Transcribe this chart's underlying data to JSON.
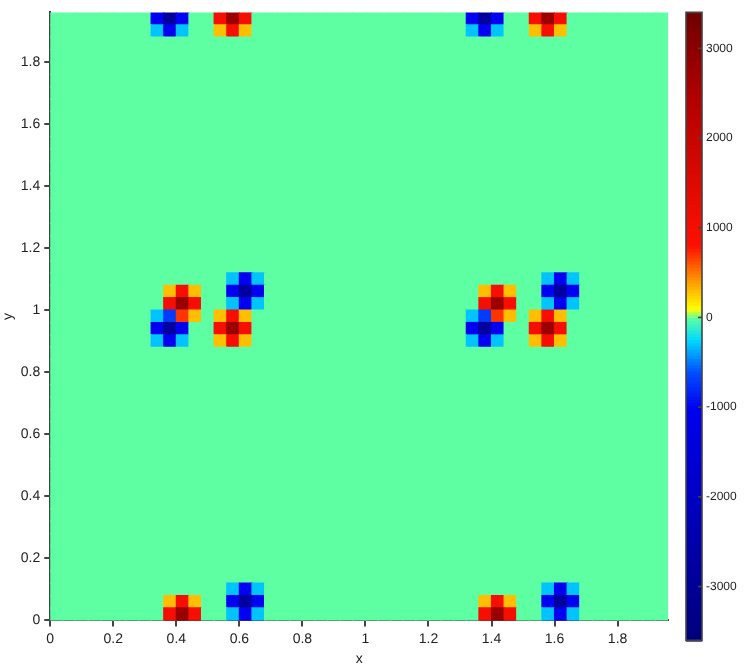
{
  "chart_data": {
    "type": "heatmap",
    "xlabel": "x",
    "ylabel": "y",
    "xlim": [
      0,
      1.96
    ],
    "xticks": [
      0,
      0.2,
      0.4,
      0.6,
      0.8,
      1,
      1.2,
      1.4,
      1.6,
      1.8
    ],
    "ylim": [
      0,
      1.96
    ],
    "yticks": [
      0,
      0.2,
      0.4,
      0.6,
      0.8,
      1,
      1.2,
      1.4,
      1.6,
      1.8
    ],
    "clim": [
      -3600,
      3400
    ],
    "cticks": [
      -3000,
      -2000,
      -1000,
      0,
      1000,
      2000,
      3000
    ],
    "cells": [
      [
        0,
        0,
        0,
        0,
        0,
        0,
        0,
        0,
        -1000,
        -2800,
        -1000,
        0,
        0,
        1000,
        2800,
        1000,
        0,
        0,
        0,
        0,
        0,
        0,
        0,
        0,
        0,
        0,
        0,
        0,
        0,
        0,
        0,
        0,
        0,
        -1000,
        -2800,
        -1000,
        0,
        0,
        1000,
        2800,
        1000,
        0,
        0,
        0,
        0,
        0,
        0,
        0,
        0
      ],
      [
        0,
        0,
        0,
        0,
        0,
        0,
        0,
        0,
        -300,
        -1000,
        -300,
        0,
        0,
        300,
        1000,
        300,
        0,
        0,
        0,
        0,
        0,
        0,
        0,
        0,
        0,
        0,
        0,
        0,
        0,
        0,
        0,
        0,
        0,
        -300,
        -1000,
        -300,
        0,
        0,
        300,
        1000,
        300,
        0,
        0,
        0,
        0,
        0,
        0,
        0,
        0
      ],
      [
        0,
        0,
        0,
        0,
        0,
        0,
        0,
        0,
        0,
        0,
        0,
        0,
        0,
        0,
        0,
        0,
        0,
        0,
        0,
        0,
        0,
        0,
        0,
        0,
        0,
        0,
        0,
        0,
        0,
        0,
        0,
        0,
        0,
        0,
        0,
        0,
        0,
        0,
        0,
        0,
        0,
        0,
        0,
        0,
        0,
        0,
        0,
        0,
        0
      ],
      [
        0,
        0,
        0,
        0,
        0,
        0,
        0,
        0,
        0,
        0,
        0,
        0,
        0,
        0,
        0,
        0,
        0,
        0,
        0,
        0,
        0,
        0,
        0,
        0,
        0,
        0,
        0,
        0,
        0,
        0,
        0,
        0,
        0,
        0,
        0,
        0,
        0,
        0,
        0,
        0,
        0,
        0,
        0,
        0,
        0,
        0,
        0,
        0,
        0
      ],
      [
        0,
        0,
        0,
        0,
        0,
        0,
        0,
        0,
        0,
        0,
        0,
        0,
        0,
        0,
        0,
        0,
        0,
        0,
        0,
        0,
        0,
        0,
        0,
        0,
        0,
        0,
        0,
        0,
        0,
        0,
        0,
        0,
        0,
        0,
        0,
        0,
        0,
        0,
        0,
        0,
        0,
        0,
        0,
        0,
        0,
        0,
        0,
        0,
        0
      ],
      [
        0,
        0,
        0,
        0,
        0,
        0,
        0,
        0,
        0,
        0,
        0,
        0,
        0,
        0,
        0,
        0,
        0,
        0,
        0,
        0,
        0,
        0,
        0,
        0,
        0,
        0,
        0,
        0,
        0,
        0,
        0,
        0,
        0,
        0,
        0,
        0,
        0,
        0,
        0,
        0,
        0,
        0,
        0,
        0,
        0,
        0,
        0,
        0,
        0
      ],
      [
        0,
        0,
        0,
        0,
        0,
        0,
        0,
        0,
        0,
        0,
        0,
        0,
        0,
        0,
        0,
        0,
        0,
        0,
        0,
        0,
        0,
        0,
        0,
        0,
        0,
        0,
        0,
        0,
        0,
        0,
        0,
        0,
        0,
        0,
        0,
        0,
        0,
        0,
        0,
        0,
        0,
        0,
        0,
        0,
        0,
        0,
        0,
        0,
        0
      ],
      [
        0,
        0,
        0,
        0,
        0,
        0,
        0,
        0,
        0,
        0,
        0,
        0,
        0,
        0,
        0,
        0,
        0,
        0,
        0,
        0,
        0,
        0,
        0,
        0,
        0,
        0,
        0,
        0,
        0,
        0,
        0,
        0,
        0,
        0,
        0,
        0,
        0,
        0,
        0,
        0,
        0,
        0,
        0,
        0,
        0,
        0,
        0,
        0,
        0
      ],
      [
        0,
        0,
        0,
        0,
        0,
        0,
        0,
        0,
        0,
        0,
        0,
        0,
        0,
        0,
        0,
        0,
        0,
        0,
        0,
        0,
        0,
        0,
        0,
        0,
        0,
        0,
        0,
        0,
        0,
        0,
        0,
        0,
        0,
        0,
        0,
        0,
        0,
        0,
        0,
        0,
        0,
        0,
        0,
        0,
        0,
        0,
        0,
        0,
        0
      ],
      [
        0,
        0,
        0,
        0,
        0,
        0,
        0,
        0,
        0,
        0,
        0,
        0,
        0,
        0,
        0,
        0,
        0,
        0,
        0,
        0,
        0,
        0,
        0,
        0,
        0,
        0,
        0,
        0,
        0,
        0,
        0,
        0,
        0,
        0,
        0,
        0,
        0,
        0,
        0,
        0,
        0,
        0,
        0,
        0,
        0,
        0,
        0,
        0,
        0
      ],
      [
        0,
        0,
        0,
        0,
        0,
        0,
        0,
        0,
        0,
        0,
        0,
        0,
        0,
        0,
        0,
        0,
        0,
        0,
        0,
        0,
        0,
        0,
        0,
        0,
        0,
        0,
        0,
        0,
        0,
        0,
        0,
        0,
        0,
        0,
        0,
        0,
        0,
        0,
        0,
        0,
        0,
        0,
        0,
        0,
        0,
        0,
        0,
        0,
        0
      ],
      [
        0,
        0,
        0,
        0,
        0,
        0,
        0,
        0,
        0,
        0,
        0,
        0,
        0,
        0,
        0,
        0,
        0,
        0,
        0,
        0,
        0,
        0,
        0,
        0,
        0,
        0,
        0,
        0,
        0,
        0,
        0,
        0,
        0,
        0,
        0,
        0,
        0,
        0,
        0,
        0,
        0,
        0,
        0,
        0,
        0,
        0,
        0,
        0,
        0
      ],
      [
        0,
        0,
        0,
        0,
        0,
        0,
        0,
        0,
        0,
        0,
        0,
        0,
        0,
        0,
        0,
        0,
        0,
        0,
        0,
        0,
        0,
        0,
        0,
        0,
        0,
        0,
        0,
        0,
        0,
        0,
        0,
        0,
        0,
        0,
        0,
        0,
        0,
        0,
        0,
        0,
        0,
        0,
        0,
        0,
        0,
        0,
        0,
        0,
        0
      ],
      [
        0,
        0,
        0,
        0,
        0,
        0,
        0,
        0,
        0,
        0,
        0,
        0,
        0,
        0,
        0,
        0,
        0,
        0,
        0,
        0,
        0,
        0,
        0,
        0,
        0,
        0,
        0,
        0,
        0,
        0,
        0,
        0,
        0,
        0,
        0,
        0,
        0,
        0,
        0,
        0,
        0,
        0,
        0,
        0,
        0,
        0,
        0,
        0,
        0
      ],
      [
        0,
        0,
        0,
        0,
        0,
        0,
        0,
        0,
        0,
        0,
        0,
        0,
        0,
        0,
        0,
        0,
        0,
        0,
        0,
        0,
        0,
        0,
        0,
        0,
        0,
        0,
        0,
        0,
        0,
        0,
        0,
        0,
        0,
        0,
        0,
        0,
        0,
        0,
        0,
        0,
        0,
        0,
        0,
        0,
        0,
        0,
        0,
        0,
        0
      ],
      [
        0,
        0,
        0,
        0,
        0,
        0,
        0,
        0,
        0,
        0,
        0,
        0,
        0,
        0,
        0,
        0,
        0,
        0,
        0,
        0,
        0,
        0,
        0,
        0,
        0,
        0,
        0,
        0,
        0,
        0,
        0,
        0,
        0,
        0,
        0,
        0,
        0,
        0,
        0,
        0,
        0,
        0,
        0,
        0,
        0,
        0,
        0,
        0,
        0
      ],
      [
        0,
        0,
        0,
        0,
        0,
        0,
        0,
        0,
        0,
        0,
        0,
        0,
        0,
        0,
        0,
        0,
        0,
        0,
        0,
        0,
        0,
        0,
        0,
        0,
        0,
        0,
        0,
        0,
        0,
        0,
        0,
        0,
        0,
        0,
        0,
        0,
        0,
        0,
        0,
        0,
        0,
        0,
        0,
        0,
        0,
        0,
        0,
        0,
        0
      ],
      [
        0,
        0,
        0,
        0,
        0,
        0,
        0,
        0,
        0,
        0,
        0,
        0,
        0,
        0,
        0,
        0,
        0,
        0,
        0,
        0,
        0,
        0,
        0,
        0,
        0,
        0,
        0,
        0,
        0,
        0,
        0,
        0,
        0,
        0,
        0,
        0,
        0,
        0,
        0,
        0,
        0,
        0,
        0,
        0,
        0,
        0,
        0,
        0,
        0
      ],
      [
        0,
        0,
        0,
        0,
        0,
        0,
        0,
        0,
        0,
        0,
        0,
        0,
        0,
        0,
        0,
        0,
        0,
        0,
        0,
        0,
        0,
        0,
        0,
        0,
        0,
        0,
        0,
        0,
        0,
        0,
        0,
        0,
        0,
        0,
        0,
        0,
        0,
        0,
        0,
        0,
        0,
        0,
        0,
        0,
        0,
        0,
        0,
        0,
        0
      ],
      [
        0,
        0,
        0,
        0,
        0,
        0,
        0,
        0,
        0,
        0,
        0,
        0,
        0,
        0,
        0,
        0,
        0,
        0,
        0,
        0,
        0,
        0,
        0,
        0,
        0,
        0,
        0,
        0,
        0,
        0,
        0,
        0,
        0,
        0,
        0,
        0,
        0,
        0,
        0,
        0,
        0,
        0,
        0,
        0,
        0,
        0,
        0,
        0,
        0
      ],
      [
        0,
        0,
        0,
        0,
        0,
        0,
        0,
        0,
        0,
        0,
        0,
        0,
        0,
        0,
        0,
        0,
        0,
        0,
        0,
        0,
        0,
        0,
        0,
        0,
        0,
        0,
        0,
        0,
        0,
        0,
        0,
        0,
        0,
        0,
        0,
        0,
        0,
        0,
        0,
        0,
        0,
        0,
        0,
        0,
        0,
        0,
        0,
        0,
        0
      ],
      [
        0,
        0,
        0,
        0,
        0,
        0,
        0,
        0,
        0,
        0,
        0,
        0,
        0,
        0,
        -300,
        -1000,
        -300,
        0,
        0,
        0,
        0,
        0,
        0,
        0,
        0,
        0,
        0,
        0,
        0,
        0,
        0,
        0,
        0,
        0,
        0,
        0,
        0,
        0,
        0,
        -300,
        -1000,
        -300,
        0,
        0,
        0,
        0,
        0,
        0,
        0
      ],
      [
        0,
        0,
        0,
        0,
        0,
        0,
        0,
        0,
        0,
        300,
        1000,
        300,
        0,
        0,
        -1000,
        -2800,
        -1000,
        0,
        0,
        0,
        0,
        0,
        0,
        0,
        0,
        0,
        0,
        0,
        0,
        0,
        0,
        0,
        0,
        0,
        300,
        1000,
        300,
        0,
        0,
        -1000,
        -2800,
        -1000,
        0,
        0,
        0,
        0,
        0,
        0,
        0
      ],
      [
        0,
        0,
        0,
        0,
        0,
        0,
        0,
        0,
        0,
        1000,
        2800,
        1000,
        0,
        0,
        -300,
        -1000,
        -300,
        0,
        0,
        0,
        0,
        0,
        0,
        0,
        0,
        0,
        0,
        0,
        0,
        0,
        0,
        0,
        0,
        0,
        1000,
        2800,
        1000,
        0,
        0,
        -300,
        -1000,
        -300,
        0,
        0,
        0,
        0,
        0,
        0,
        0
      ],
      [
        0,
        0,
        0,
        0,
        0,
        0,
        0,
        0,
        -300,
        -700,
        700,
        300,
        0,
        300,
        1000,
        300,
        0,
        0,
        0,
        0,
        0,
        0,
        0,
        0,
        0,
        0,
        0,
        0,
        0,
        0,
        0,
        0,
        0,
        -300,
        -700,
        700,
        300,
        0,
        300,
        1000,
        300,
        0,
        0,
        0,
        0,
        0,
        0,
        0,
        0
      ],
      [
        0,
        0,
        0,
        0,
        0,
        0,
        0,
        0,
        -1000,
        -2800,
        -1000,
        0,
        0,
        1000,
        2800,
        1000,
        0,
        0,
        0,
        0,
        0,
        0,
        0,
        0,
        0,
        0,
        0,
        0,
        0,
        0,
        0,
        0,
        0,
        -1000,
        -2800,
        -1000,
        0,
        0,
        1000,
        2800,
        1000,
        0,
        0,
        0,
        0,
        0,
        0,
        0,
        0
      ],
      [
        0,
        0,
        0,
        0,
        0,
        0,
        0,
        0,
        -300,
        -1000,
        -300,
        0,
        0,
        300,
        1000,
        300,
        0,
        0,
        0,
        0,
        0,
        0,
        0,
        0,
        0,
        0,
        0,
        0,
        0,
        0,
        0,
        0,
        0,
        -300,
        -1000,
        -300,
        0,
        0,
        300,
        1000,
        300,
        0,
        0,
        0,
        0,
        0,
        0,
        0,
        0
      ],
      [
        0,
        0,
        0,
        0,
        0,
        0,
        0,
        0,
        0,
        0,
        0,
        0,
        0,
        0,
        0,
        0,
        0,
        0,
        0,
        0,
        0,
        0,
        0,
        0,
        0,
        0,
        0,
        0,
        0,
        0,
        0,
        0,
        0,
        0,
        0,
        0,
        0,
        0,
        0,
        0,
        0,
        0,
        0,
        0,
        0,
        0,
        0,
        0,
        0
      ],
      [
        0,
        0,
        0,
        0,
        0,
        0,
        0,
        0,
        0,
        0,
        0,
        0,
        0,
        0,
        0,
        0,
        0,
        0,
        0,
        0,
        0,
        0,
        0,
        0,
        0,
        0,
        0,
        0,
        0,
        0,
        0,
        0,
        0,
        0,
        0,
        0,
        0,
        0,
        0,
        0,
        0,
        0,
        0,
        0,
        0,
        0,
        0,
        0,
        0
      ],
      [
        0,
        0,
        0,
        0,
        0,
        0,
        0,
        0,
        0,
        0,
        0,
        0,
        0,
        0,
        0,
        0,
        0,
        0,
        0,
        0,
        0,
        0,
        0,
        0,
        0,
        0,
        0,
        0,
        0,
        0,
        0,
        0,
        0,
        0,
        0,
        0,
        0,
        0,
        0,
        0,
        0,
        0,
        0,
        0,
        0,
        0,
        0,
        0,
        0
      ],
      [
        0,
        0,
        0,
        0,
        0,
        0,
        0,
        0,
        0,
        0,
        0,
        0,
        0,
        0,
        0,
        0,
        0,
        0,
        0,
        0,
        0,
        0,
        0,
        0,
        0,
        0,
        0,
        0,
        0,
        0,
        0,
        0,
        0,
        0,
        0,
        0,
        0,
        0,
        0,
        0,
        0,
        0,
        0,
        0,
        0,
        0,
        0,
        0,
        0
      ],
      [
        0,
        0,
        0,
        0,
        0,
        0,
        0,
        0,
        0,
        0,
        0,
        0,
        0,
        0,
        0,
        0,
        0,
        0,
        0,
        0,
        0,
        0,
        0,
        0,
        0,
        0,
        0,
        0,
        0,
        0,
        0,
        0,
        0,
        0,
        0,
        0,
        0,
        0,
        0,
        0,
        0,
        0,
        0,
        0,
        0,
        0,
        0,
        0,
        0
      ],
      [
        0,
        0,
        0,
        0,
        0,
        0,
        0,
        0,
        0,
        0,
        0,
        0,
        0,
        0,
        0,
        0,
        0,
        0,
        0,
        0,
        0,
        0,
        0,
        0,
        0,
        0,
        0,
        0,
        0,
        0,
        0,
        0,
        0,
        0,
        0,
        0,
        0,
        0,
        0,
        0,
        0,
        0,
        0,
        0,
        0,
        0,
        0,
        0,
        0
      ],
      [
        0,
        0,
        0,
        0,
        0,
        0,
        0,
        0,
        0,
        0,
        0,
        0,
        0,
        0,
        0,
        0,
        0,
        0,
        0,
        0,
        0,
        0,
        0,
        0,
        0,
        0,
        0,
        0,
        0,
        0,
        0,
        0,
        0,
        0,
        0,
        0,
        0,
        0,
        0,
        0,
        0,
        0,
        0,
        0,
        0,
        0,
        0,
        0,
        0
      ],
      [
        0,
        0,
        0,
        0,
        0,
        0,
        0,
        0,
        0,
        0,
        0,
        0,
        0,
        0,
        0,
        0,
        0,
        0,
        0,
        0,
        0,
        0,
        0,
        0,
        0,
        0,
        0,
        0,
        0,
        0,
        0,
        0,
        0,
        0,
        0,
        0,
        0,
        0,
        0,
        0,
        0,
        0,
        0,
        0,
        0,
        0,
        0,
        0,
        0
      ],
      [
        0,
        0,
        0,
        0,
        0,
        0,
        0,
        0,
        0,
        0,
        0,
        0,
        0,
        0,
        0,
        0,
        0,
        0,
        0,
        0,
        0,
        0,
        0,
        0,
        0,
        0,
        0,
        0,
        0,
        0,
        0,
        0,
        0,
        0,
        0,
        0,
        0,
        0,
        0,
        0,
        0,
        0,
        0,
        0,
        0,
        0,
        0,
        0,
        0
      ],
      [
        0,
        0,
        0,
        0,
        0,
        0,
        0,
        0,
        0,
        0,
        0,
        0,
        0,
        0,
        0,
        0,
        0,
        0,
        0,
        0,
        0,
        0,
        0,
        0,
        0,
        0,
        0,
        0,
        0,
        0,
        0,
        0,
        0,
        0,
        0,
        0,
        0,
        0,
        0,
        0,
        0,
        0,
        0,
        0,
        0,
        0,
        0,
        0,
        0
      ],
      [
        0,
        0,
        0,
        0,
        0,
        0,
        0,
        0,
        0,
        0,
        0,
        0,
        0,
        0,
        0,
        0,
        0,
        0,
        0,
        0,
        0,
        0,
        0,
        0,
        0,
        0,
        0,
        0,
        0,
        0,
        0,
        0,
        0,
        0,
        0,
        0,
        0,
        0,
        0,
        0,
        0,
        0,
        0,
        0,
        0,
        0,
        0,
        0,
        0
      ],
      [
        0,
        0,
        0,
        0,
        0,
        0,
        0,
        0,
        0,
        0,
        0,
        0,
        0,
        0,
        0,
        0,
        0,
        0,
        0,
        0,
        0,
        0,
        0,
        0,
        0,
        0,
        0,
        0,
        0,
        0,
        0,
        0,
        0,
        0,
        0,
        0,
        0,
        0,
        0,
        0,
        0,
        0,
        0,
        0,
        0,
        0,
        0,
        0,
        0
      ],
      [
        0,
        0,
        0,
        0,
        0,
        0,
        0,
        0,
        0,
        0,
        0,
        0,
        0,
        0,
        0,
        0,
        0,
        0,
        0,
        0,
        0,
        0,
        0,
        0,
        0,
        0,
        0,
        0,
        0,
        0,
        0,
        0,
        0,
        0,
        0,
        0,
        0,
        0,
        0,
        0,
        0,
        0,
        0,
        0,
        0,
        0,
        0,
        0,
        0
      ],
      [
        0,
        0,
        0,
        0,
        0,
        0,
        0,
        0,
        0,
        0,
        0,
        0,
        0,
        0,
        0,
        0,
        0,
        0,
        0,
        0,
        0,
        0,
        0,
        0,
        0,
        0,
        0,
        0,
        0,
        0,
        0,
        0,
        0,
        0,
        0,
        0,
        0,
        0,
        0,
        0,
        0,
        0,
        0,
        0,
        0,
        0,
        0,
        0,
        0
      ],
      [
        0,
        0,
        0,
        0,
        0,
        0,
        0,
        0,
        0,
        0,
        0,
        0,
        0,
        0,
        0,
        0,
        0,
        0,
        0,
        0,
        0,
        0,
        0,
        0,
        0,
        0,
        0,
        0,
        0,
        0,
        0,
        0,
        0,
        0,
        0,
        0,
        0,
        0,
        0,
        0,
        0,
        0,
        0,
        0,
        0,
        0,
        0,
        0,
        0
      ],
      [
        0,
        0,
        0,
        0,
        0,
        0,
        0,
        0,
        0,
        0,
        0,
        0,
        0,
        0,
        0,
        0,
        0,
        0,
        0,
        0,
        0,
        0,
        0,
        0,
        0,
        0,
        0,
        0,
        0,
        0,
        0,
        0,
        0,
        0,
        0,
        0,
        0,
        0,
        0,
        0,
        0,
        0,
        0,
        0,
        0,
        0,
        0,
        0,
        0
      ],
      [
        0,
        0,
        0,
        0,
        0,
        0,
        0,
        0,
        0,
        0,
        0,
        0,
        0,
        0,
        0,
        0,
        0,
        0,
        0,
        0,
        0,
        0,
        0,
        0,
        0,
        0,
        0,
        0,
        0,
        0,
        0,
        0,
        0,
        0,
        0,
        0,
        0,
        0,
        0,
        0,
        0,
        0,
        0,
        0,
        0,
        0,
        0,
        0,
        0
      ],
      [
        0,
        0,
        0,
        0,
        0,
        0,
        0,
        0,
        0,
        0,
        0,
        0,
        0,
        0,
        0,
        0,
        0,
        0,
        0,
        0,
        0,
        0,
        0,
        0,
        0,
        0,
        0,
        0,
        0,
        0,
        0,
        0,
        0,
        0,
        0,
        0,
        0,
        0,
        0,
        0,
        0,
        0,
        0,
        0,
        0,
        0,
        0,
        0,
        0
      ],
      [
        0,
        0,
        0,
        0,
        0,
        0,
        0,
        0,
        0,
        0,
        0,
        0,
        0,
        0,
        0,
        0,
        0,
        0,
        0,
        0,
        0,
        0,
        0,
        0,
        0,
        0,
        0,
        0,
        0,
        0,
        0,
        0,
        0,
        0,
        0,
        0,
        0,
        0,
        0,
        0,
        0,
        0,
        0,
        0,
        0,
        0,
        0,
        0,
        0
      ],
      [
        0,
        0,
        0,
        0,
        0,
        0,
        0,
        0,
        0,
        0,
        0,
        0,
        0,
        0,
        -300,
        -1000,
        -300,
        0,
        0,
        0,
        0,
        0,
        0,
        0,
        0,
        0,
        0,
        0,
        0,
        0,
        0,
        0,
        0,
        0,
        0,
        0,
        0,
        0,
        0,
        -300,
        -1000,
        -300,
        0,
        0,
        0,
        0,
        0,
        0,
        0
      ],
      [
        0,
        0,
        0,
        0,
        0,
        0,
        0,
        0,
        0,
        300,
        1000,
        300,
        0,
        0,
        -1000,
        -2800,
        -1000,
        0,
        0,
        0,
        0,
        0,
        0,
        0,
        0,
        0,
        0,
        0,
        0,
        0,
        0,
        0,
        0,
        0,
        300,
        1000,
        300,
        0,
        0,
        -1000,
        -2800,
        -1000,
        0,
        0,
        0,
        0,
        0,
        0,
        0
      ],
      [
        0,
        0,
        0,
        0,
        0,
        0,
        0,
        0,
        0,
        1000,
        2800,
        1000,
        0,
        0,
        -300,
        -1000,
        -300,
        0,
        0,
        0,
        0,
        0,
        0,
        0,
        0,
        0,
        0,
        0,
        0,
        0,
        0,
        0,
        0,
        0,
        1000,
        2800,
        1000,
        0,
        0,
        -300,
        -1000,
        -300,
        0,
        0,
        0,
        0,
        0,
        0,
        0
      ]
    ]
  }
}
